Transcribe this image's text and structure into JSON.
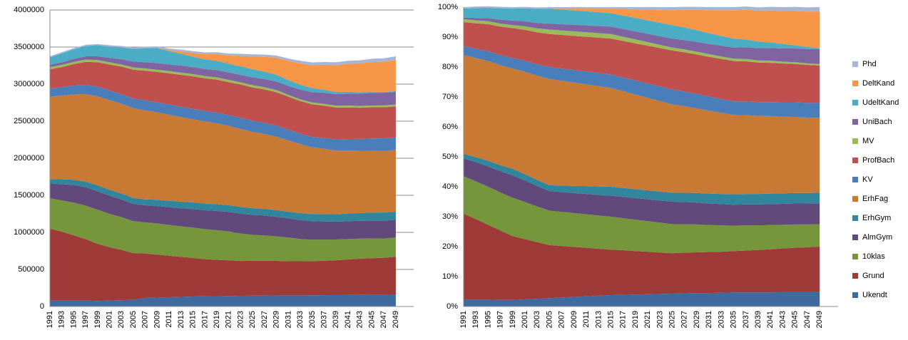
{
  "chart_data": [
    {
      "type": "area",
      "stacking": "normal",
      "grid": true,
      "categories": [
        "1991",
        "1993",
        "1995",
        "1997",
        "1999",
        "2001",
        "2003",
        "2005",
        "2007",
        "2009",
        "2011",
        "2013",
        "2015",
        "2017",
        "2019",
        "2021",
        "2023",
        "2025",
        "2027",
        "2029",
        "2031",
        "2033",
        "2035",
        "2037",
        "2039",
        "2041",
        "2043",
        "2045",
        "2047",
        "2049"
      ],
      "ylim": [
        0,
        4000000
      ],
      "yticks": [
        0,
        500000,
        1000000,
        1500000,
        2000000,
        2500000,
        3000000,
        3500000,
        4000000
      ],
      "series": [
        {
          "color": "#3f6aa0",
          "values": [
            80000,
            80000,
            80000,
            80000,
            75000,
            80000,
            85000,
            90000,
            115000,
            120000,
            125000,
            130000,
            135000,
            138000,
            140000,
            142000,
            144000,
            146000,
            148000,
            150000,
            150000,
            150000,
            152000,
            153000,
            154000,
            155000,
            156000,
            157000,
            158000,
            160000
          ]
        },
        {
          "color": "#9e3a38",
          "values": [
            970000,
            930000,
            880000,
            830000,
            770000,
            720000,
            680000,
            630000,
            600000,
            580000,
            560000,
            540000,
            520000,
            500000,
            490000,
            480000,
            470000,
            470000,
            470000,
            465000,
            460000,
            460000,
            460000,
            465000,
            470000,
            480000,
            490000,
            495000,
            500000,
            510000
          ]
        },
        {
          "color": "#76963c",
          "values": [
            410000,
            420000,
            440000,
            450000,
            460000,
            450000,
            440000,
            430000,
            420000,
            420000,
            415000,
            410000,
            410000,
            405000,
            400000,
            390000,
            370000,
            350000,
            340000,
            330000,
            320000,
            300000,
            290000,
            285000,
            280000,
            275000,
            270000,
            265000,
            260000,
            260000
          ]
        },
        {
          "color": "#614a7b",
          "values": [
            200000,
            220000,
            240000,
            250000,
            250000,
            245000,
            240000,
            235000,
            230000,
            235000,
            240000,
            245000,
            250000,
            255000,
            260000,
            265000,
            270000,
            270000,
            270000,
            265000,
            260000,
            255000,
            250000,
            245000,
            240000,
            240000,
            240000,
            240000,
            240000,
            240000
          ]
        },
        {
          "color": "#31859c",
          "values": [
            60000,
            65000,
            70000,
            75000,
            80000,
            80000,
            80000,
            80000,
            80000,
            85000,
            85000,
            90000,
            90000,
            90000,
            90000,
            90000,
            90000,
            90000,
            90000,
            90000,
            90000,
            95000,
            95000,
            100000,
            100000,
            105000,
            105000,
            110000,
            110000,
            110000
          ]
        },
        {
          "color": "#c87a35",
          "values": [
            1110000,
            1130000,
            1150000,
            1180000,
            1200000,
            1210000,
            1210000,
            1210000,
            1200000,
            1180000,
            1160000,
            1140000,
            1120000,
            1110000,
            1090000,
            1070000,
            1050000,
            1030000,
            1010000,
            990000,
            960000,
            930000,
            900000,
            880000,
            860000,
            850000,
            840000,
            835000,
            830000,
            830000
          ]
        },
        {
          "color": "#4a7ebb",
          "values": [
            110000,
            115000,
            120000,
            125000,
            130000,
            130000,
            130000,
            130000,
            135000,
            135000,
            140000,
            140000,
            140000,
            140000,
            145000,
            145000,
            150000,
            150000,
            150000,
            150000,
            145000,
            140000,
            140000,
            145000,
            150000,
            155000,
            160000,
            165000,
            170000,
            170000
          ]
        },
        {
          "color": "#c0504d",
          "values": [
            260000,
            270000,
            290000,
            310000,
            330000,
            350000,
            370000,
            390000,
            400000,
            410000,
            420000,
            430000,
            440000,
            440000,
            445000,
            445000,
            450000,
            450000,
            450000,
            450000,
            445000,
            440000,
            440000,
            435000,
            430000,
            425000,
            420000,
            420000,
            420000,
            420000
          ]
        },
        {
          "color": "#9bbb59",
          "values": [
            30000,
            30000,
            30000,
            30000,
            30000,
            30000,
            30000,
            30000,
            30000,
            30000,
            30000,
            30000,
            30000,
            30000,
            30000,
            30000,
            30000,
            30000,
            30000,
            30000,
            25000,
            25000,
            25000,
            25000,
            25000,
            25000,
            25000,
            25000,
            25000,
            25000
          ]
        },
        {
          "color": "#8064a2",
          "values": [
            30000,
            35000,
            40000,
            45000,
            50000,
            60000,
            70000,
            80000,
            85000,
            90000,
            90000,
            95000,
            95000,
            95000,
            100000,
            100000,
            100000,
            105000,
            110000,
            115000,
            120000,
            130000,
            140000,
            150000,
            155000,
            160000,
            165000,
            170000,
            170000,
            170000
          ]
        },
        {
          "color": "#4bacc6",
          "values": [
            100000,
            120000,
            130000,
            140000,
            150000,
            150000,
            160000,
            170000,
            190000,
            200000,
            180000,
            160000,
            140000,
            130000,
            125000,
            120000,
            115000,
            110000,
            100000,
            90000,
            80000,
            65000,
            55000,
            40000,
            30000,
            25000,
            20000,
            15000,
            10000,
            10000
          ]
        },
        {
          "color": "#f79646",
          "values": [
            0,
            0,
            0,
            0,
            0,
            0,
            0,
            0,
            0,
            5000,
            15000,
            30000,
            50000,
            70000,
            90000,
            110000,
            140000,
            170000,
            200000,
            230000,
            260000,
            290000,
            310000,
            340000,
            360000,
            380000,
            390000,
            400000,
            410000,
            420000
          ]
        },
        {
          "color": "#a5b5d3",
          "values": [
            15000,
            15000,
            15000,
            15000,
            15000,
            20000,
            20000,
            20000,
            20000,
            20000,
            20000,
            25000,
            25000,
            25000,
            25000,
            25000,
            30000,
            30000,
            30000,
            30000,
            30000,
            35000,
            35000,
            35000,
            40000,
            40000,
            40000,
            45000,
            45000,
            50000
          ]
        }
      ]
    },
    {
      "type": "area",
      "stacking": "normal",
      "grid": false,
      "legend": "right",
      "categories": [
        "1991",
        "1993",
        "1995",
        "1997",
        "1999",
        "2001",
        "2003",
        "2005",
        "2007",
        "2009",
        "2011",
        "2013",
        "2015",
        "2017",
        "2019",
        "2021",
        "2023",
        "2025",
        "2027",
        "2029",
        "2031",
        "2033",
        "2035",
        "2037",
        "2039",
        "2041",
        "2043",
        "2045",
        "2047",
        "2049"
      ],
      "ylim": [
        0,
        100
      ],
      "yticks": [
        {
          "value": 0,
          "label": "0%"
        },
        {
          "value": 10,
          "label": "10%"
        },
        {
          "value": 20,
          "label": "20%"
        },
        {
          "value": 30,
          "label": "30%"
        },
        {
          "value": 40,
          "label": "40%"
        },
        {
          "value": 50,
          "label": "50%"
        },
        {
          "value": 60,
          "label": "60%"
        },
        {
          "value": 70,
          "label": "70%"
        },
        {
          "value": 80,
          "label": "80%"
        },
        {
          "value": 90,
          "label": "90%"
        },
        {
          "value": 100,
          "label": "100%"
        }
      ],
      "series": [
        {
          "name": "Ukendt",
          "color": "#3f6aa0",
          "values": [
            2.3,
            2.3,
            2.3,
            2.2,
            2.2,
            2.4,
            2.6,
            2.8,
            3.0,
            3.2,
            3.4,
            3.6,
            3.8,
            3.9,
            4.0,
            4.1,
            4.2,
            4.3,
            4.4,
            4.5,
            4.5,
            4.6,
            4.7,
            4.7,
            4.7,
            4.7,
            4.8,
            4.8,
            4.8,
            4.8
          ]
        },
        {
          "name": "Grund",
          "color": "#9e3a38",
          "values": [
            28.7,
            26.9,
            25.0,
            23.2,
            21.3,
            20.1,
            18.9,
            17.7,
            17.2,
            16.7,
            16.2,
            15.7,
            15.2,
            14.9,
            14.5,
            14.2,
            13.8,
            13.5,
            13.6,
            13.6,
            13.7,
            13.7,
            13.8,
            14.0,
            14.2,
            14.4,
            14.6,
            14.8,
            15.0,
            15.2
          ]
        },
        {
          "name": "10klas",
          "color": "#76963c",
          "values": [
            12.5,
            12.6,
            12.7,
            12.7,
            12.8,
            12.4,
            11.9,
            11.5,
            11.4,
            11.3,
            11.2,
            11.1,
            11.0,
            10.7,
            10.5,
            10.2,
            10.0,
            9.7,
            9.5,
            9.3,
            9.0,
            8.8,
            8.5,
            8.4,
            8.2,
            8.1,
            7.9,
            7.8,
            7.6,
            7.5
          ]
        },
        {
          "name": "AlmGym",
          "color": "#614a7b",
          "values": [
            6.0,
            6.4,
            6.8,
            7.1,
            7.5,
            7.2,
            6.8,
            6.5,
            6.6,
            6.7,
            6.8,
            6.9,
            7.0,
            7.1,
            7.2,
            7.3,
            7.4,
            7.5,
            7.4,
            7.3,
            7.2,
            7.1,
            7.0,
            7.0,
            7.0,
            7.0,
            7.0,
            7.0,
            7.0,
            7.0
          ]
        },
        {
          "name": "ErhGym",
          "color": "#31859c",
          "values": [
            1.5,
            1.7,
            1.9,
            2.0,
            2.2,
            2.1,
            2.1,
            2.0,
            2.2,
            2.4,
            2.6,
            2.8,
            3.0,
            3.0,
            3.0,
            3.0,
            3.0,
            3.0,
            3.1,
            3.2,
            3.3,
            3.4,
            3.5,
            3.5,
            3.5,
            3.5,
            3.5,
            3.5,
            3.5,
            3.5
          ]
        },
        {
          "name": "ErhFag",
          "color": "#c87a35",
          "values": [
            33.0,
            33.1,
            33.3,
            33.4,
            33.5,
            34.2,
            34.8,
            35.5,
            35.0,
            34.5,
            34.0,
            33.5,
            33.0,
            32.3,
            31.6,
            30.9,
            30.2,
            29.5,
            28.9,
            28.3,
            27.7,
            27.1,
            26.5,
            26.3,
            26.1,
            25.9,
            25.6,
            25.4,
            25.2,
            25.0
          ]
        },
        {
          "name": "KV",
          "color": "#4a7ebb",
          "values": [
            3.0,
            3.1,
            3.3,
            3.4,
            3.5,
            3.7,
            3.8,
            4.0,
            4.1,
            4.2,
            4.3,
            4.4,
            4.5,
            4.6,
            4.7,
            4.8,
            4.9,
            5.0,
            4.9,
            4.8,
            4.7,
            4.6,
            4.5,
            4.6,
            4.6,
            4.7,
            4.8,
            4.9,
            4.9,
            5.0
          ]
        },
        {
          "name": "ProfBach",
          "color": "#c0504d",
          "values": [
            8.0,
            8.5,
            9.0,
            9.5,
            10.0,
            10.3,
            10.7,
            11.0,
            11.2,
            11.4,
            11.6,
            11.8,
            12.0,
            12.2,
            12.4,
            12.6,
            12.8,
            13.0,
            13.1,
            13.2,
            13.3,
            13.4,
            13.5,
            13.4,
            13.2,
            13.1,
            13.0,
            12.8,
            12.7,
            12.5
          ]
        },
        {
          "name": "MV",
          "color": "#9bbb59",
          "values": [
            1.0,
            1.0,
            1.0,
            1.0,
            1.0,
            1.2,
            1.3,
            1.5,
            1.5,
            1.5,
            1.5,
            1.5,
            1.5,
            1.4,
            1.3,
            1.2,
            1.1,
            1.0,
            1.0,
            0.9,
            0.9,
            0.8,
            0.8,
            0.8,
            0.7,
            0.7,
            0.6,
            0.6,
            0.5,
            0.5
          ]
        },
        {
          "name": "UniBach",
          "color": "#8064a2",
          "values": [
            0.5,
            0.8,
            1.0,
            1.3,
            1.5,
            1.7,
            1.8,
            2.0,
            2.1,
            2.2,
            2.3,
            2.4,
            2.5,
            2.6,
            2.7,
            2.8,
            2.9,
            3.0,
            3.1,
            3.3,
            3.4,
            3.6,
            3.7,
            3.9,
            4.1,
            4.3,
            4.4,
            4.6,
            4.8,
            5.0
          ]
        },
        {
          "name": "UdeltKand",
          "color": "#4bacc6",
          "values": [
            3.0,
            3.3,
            3.5,
            3.8,
            4.0,
            4.3,
            4.7,
            5.0,
            4.9,
            4.8,
            4.7,
            4.6,
            4.5,
            4.5,
            4.5,
            4.5,
            4.5,
            4.5,
            4.2,
            3.9,
            3.6,
            3.3,
            3.0,
            2.6,
            2.2,
            1.8,
            1.5,
            1.1,
            0.7,
            0.3
          ]
        },
        {
          "name": "DeltKand",
          "color": "#f79646",
          "values": [
            0,
            0,
            0,
            0,
            0,
            0,
            0,
            0,
            0.3,
            0.6,
            0.9,
            1.2,
            1.5,
            2.2,
            2.9,
            3.6,
            4.3,
            5.0,
            5.9,
            6.8,
            7.7,
            8.6,
            9.5,
            9.9,
            10.3,
            10.7,
            11.0,
            11.4,
            11.8,
            12.2
          ]
        },
        {
          "name": "Phd",
          "color": "#a5b5d3",
          "values": [
            0.5,
            0.5,
            0.5,
            0.5,
            0.5,
            0.5,
            0.5,
            0.5,
            0.5,
            0.5,
            0.5,
            0.5,
            0.5,
            0.6,
            0.7,
            0.8,
            0.9,
            1.0,
            1.0,
            1.0,
            1.0,
            1.0,
            1.0,
            1.1,
            1.1,
            1.2,
            1.3,
            1.4,
            1.4,
            1.5
          ]
        }
      ]
    }
  ]
}
